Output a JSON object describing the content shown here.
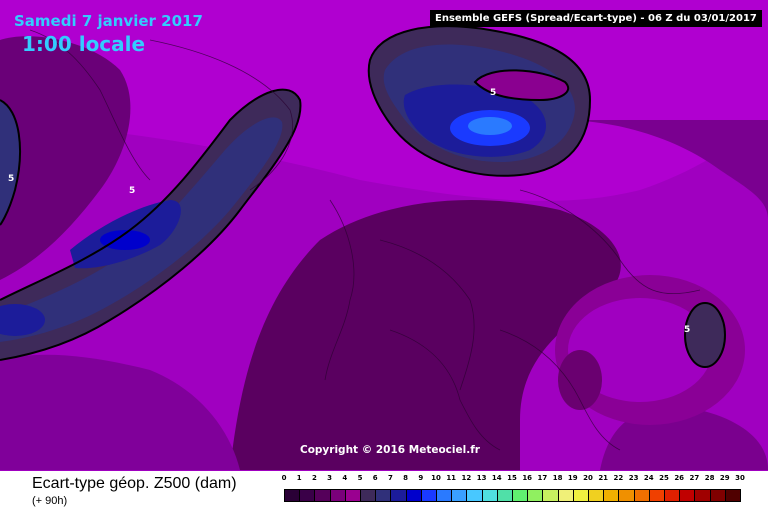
{
  "header": {
    "date": "Samedi 7 janvier 2017",
    "time": "1:00 locale",
    "run_info": "Ensemble GEFS  (Spread/Ecart-type) - 06 Z du 03/01/2017"
  },
  "footer": {
    "copyright": "Copyright © 2016 Meteociel.fr"
  },
  "legend": {
    "title": "Ecart-type géop. Z500 (dam)",
    "lead": "(+ 90h)",
    "ticks": [
      "0",
      "1",
      "2",
      "3",
      "4",
      "5",
      "6",
      "7",
      "8",
      "9",
      "10",
      "11",
      "12",
      "13",
      "14",
      "15",
      "16",
      "17",
      "18",
      "19",
      "20",
      "21",
      "22",
      "23",
      "24",
      "25",
      "26",
      "27",
      "28",
      "29",
      "30"
    ],
    "colors": [
      "#2a0036",
      "#3a0048",
      "#55005a",
      "#7a007a",
      "#9a0090",
      "#3e2a5a",
      "#30307a",
      "#1c1c9a",
      "#0000cc",
      "#1a3aff",
      "#2a7aff",
      "#3aa0ff",
      "#48c8ff",
      "#50e0e0",
      "#50e0a8",
      "#60f070",
      "#90f060",
      "#c8f060",
      "#f0f078",
      "#f0f040",
      "#f0d020",
      "#f0b000",
      "#f09000",
      "#f07000",
      "#f04000",
      "#e02000",
      "#c00000",
      "#a00000",
      "#800000",
      "#500000"
    ]
  },
  "contour_labels": [
    "5",
    "5",
    "5",
    "5"
  ],
  "colors": {
    "background_purple": "#a400c8",
    "dark_purple": "#4a0050",
    "blue_spread": "#1a3aff"
  }
}
